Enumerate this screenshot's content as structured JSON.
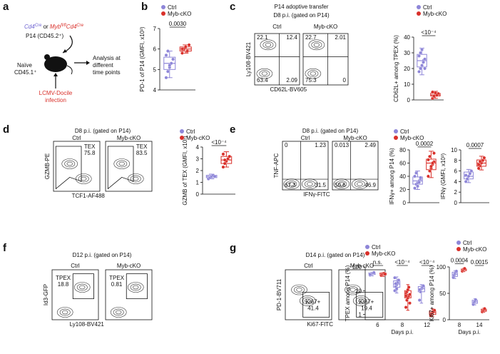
{
  "figure": {
    "a": {
      "letter": "a",
      "genotype": [
        {
          "text": "Cd4",
          "color": "#6a5fd0",
          "italic": true
        },
        {
          "text": "Cre",
          "sup": true,
          "color": "#6a5fd0",
          "italic": true
        },
        {
          "text": " or "
        },
        {
          "text": "Myb",
          "color": "#d9302a",
          "italic": true
        },
        {
          "text": "fl/fl",
          "sup": true,
          "color": "#d9302a",
          "italic": true
        },
        {
          "text": "Cd4",
          "color": "#d9302a",
          "italic": true
        },
        {
          "text": "Cre",
          "sup": true,
          "color": "#d9302a",
          "italic": true
        }
      ],
      "p14": "P14 (CD45.2⁺)",
      "host": [
        "Naïve",
        "CD45.1⁺"
      ],
      "analysis": [
        "Analysis at",
        "different",
        "time points"
      ],
      "infection": [
        "LCMV-Docile",
        "infection"
      ]
    },
    "b": {
      "letter": "b"
    },
    "c": {
      "letter": "c",
      "title": "P14 adoptive transfer",
      "subtitle": "D8 p.i. (gated on P14)",
      "ylabel": "Ly108-BV421",
      "xlabel": "CD62L-BV605",
      "plots": [
        {
          "name": "Ctrl",
          "quadrants": [
            22.1,
            12.4,
            63.4,
            2.09
          ]
        },
        {
          "name": "Myb-cKO",
          "quadrants": [
            22.7,
            2.01,
            75.3,
            0
          ]
        }
      ]
    },
    "d": {
      "letter": "d",
      "subtitle": "D8 p.i. (gated on P14)",
      "ylabel": "GZMB-PE",
      "xlabel": "TCF1-AF488",
      "plots": [
        {
          "name": "Ctrl",
          "gate": "TEX",
          "gate_value": 75.8
        },
        {
          "name": "Myb-cKO",
          "gate": "TEX",
          "gate_value": 83.5
        }
      ]
    },
    "e": {
      "letter": "e",
      "subtitle": "D8 p.i. (gated on P14)",
      "ylabel": "TNF-APC",
      "xlabel": "IFNγ-FITC",
      "plots": [
        {
          "name": "Ctrl",
          "quadrants": [
            0,
            1.23,
            67.3,
            31.5
          ]
        },
        {
          "name": "Myb-cKO",
          "quadrants": [
            0.013,
            2.49,
            50.6,
            46.9
          ]
        }
      ]
    },
    "f": {
      "letter": "f",
      "subtitle": "D12 p.i. (gated on P14)",
      "ylabel": "Id3-GFP",
      "xlabel": "Ly108-BV421",
      "plots": [
        {
          "name": "Ctrl",
          "gate": "TPEX",
          "gate_value": 18.8
        },
        {
          "name": "Myb-cKO",
          "gate": "TPEX",
          "gate_value": 0.81
        }
      ]
    },
    "g": {
      "letter": "g",
      "subtitle": "D14 p.i. (gated on P14)",
      "ylabel": "PD-1-BV711",
      "xlabel": "Ki67-FITC",
      "plots": [
        {
          "name": "Ctrl",
          "gate": "Ki67+",
          "gate_value": 41.4
        },
        {
          "name": "Myb-cKO",
          "gate": "Ki67+",
          "gate_value": 19.4
        }
      ]
    }
  },
  "chart_data": [
    {
      "type": "box",
      "ylabel": "PD-1 of P14 (GMFI, x10³)",
      "ylim": [
        4,
        7
      ],
      "yticks": [
        4,
        5,
        6,
        7
      ],
      "legend": true,
      "pvalues": [
        "0.0030"
      ],
      "series": [
        {
          "name": "Ctrl",
          "color": "#8e86d8",
          "boxes": [
            {
              "min": 4.6,
              "q1": 5.0,
              "median": 5.3,
              "q3": 5.6,
              "max": 5.9,
              "points": [
                4.6,
                4.9,
                5.1,
                5.3,
                5.5,
                5.7,
                5.9,
                5.2
              ]
            }
          ]
        },
        {
          "name": "Myb-cKO",
          "color": "#d9302a",
          "boxes": [
            {
              "min": 5.8,
              "q1": 5.9,
              "median": 6.0,
              "q3": 6.1,
              "max": 6.2,
              "points": [
                5.8,
                6.0,
                6.1,
                5.9,
                6.2,
                6.0
              ]
            }
          ]
        }
      ]
    },
    {
      "type": "box",
      "ylabel": "CD62L+ among TPEX (%)",
      "ylim": [
        0,
        40
      ],
      "yticks": [
        0,
        10,
        20,
        30,
        40
      ],
      "legend": true,
      "pvalues": [
        "<10⁻⁴"
      ],
      "series": [
        {
          "name": "Ctrl",
          "color": "#8e86d8",
          "boxes": [
            {
              "min": 16,
              "q1": 21,
              "median": 25,
              "q3": 29,
              "max": 33,
              "points": [
                18,
                20,
                22,
                25,
                26,
                28,
                30,
                32,
                24,
                20
              ]
            }
          ]
        },
        {
          "name": "Myb-cKO",
          "color": "#d9302a",
          "boxes": [
            {
              "min": 1,
              "q1": 2.5,
              "median": 3.2,
              "q3": 4.2,
              "max": 5.5,
              "points": [
                1,
                2,
                3,
                3.5,
                4,
                5,
                2.5,
                4.5,
                3
              ]
            }
          ]
        }
      ]
    },
    {
      "type": "box",
      "ylabel": "GZMB of TEX (GMFI, x10³)",
      "ylim": [
        0,
        4
      ],
      "yticks": [
        0,
        1,
        2,
        3,
        4
      ],
      "legend": true,
      "pvalues": [
        "<10⁻⁴"
      ],
      "series": [
        {
          "name": "Ctrl",
          "color": "#8e86d8",
          "boxes": [
            {
              "min": 1.3,
              "q1": 1.4,
              "median": 1.5,
              "q3": 1.6,
              "max": 1.7,
              "points": [
                1.3,
                1.4,
                1.5,
                1.6,
                1.5
              ]
            }
          ]
        },
        {
          "name": "Myb-cKO",
          "color": "#d9302a",
          "boxes": [
            {
              "min": 2.3,
              "q1": 2.6,
              "median": 2.9,
              "q3": 3.2,
              "max": 3.6,
              "points": [
                2.3,
                2.6,
                2.8,
                3.0,
                3.2,
                3.4,
                2.9
              ]
            }
          ]
        }
      ]
    },
    {
      "type": "box",
      "ylabel": "IFNγ+ among P14 (%)",
      "ylim": [
        0,
        80
      ],
      "yticks": [
        0,
        20,
        40,
        60,
        80
      ],
      "legend": true,
      "pvalues": [
        "0.0002"
      ],
      "series": [
        {
          "name": "Ctrl",
          "color": "#8e86d8",
          "boxes": [
            {
              "min": 20,
              "q1": 28,
              "median": 33,
              "q3": 39,
              "max": 48,
              "points": [
                22,
                28,
                30,
                33,
                36,
                40,
                45,
                25,
                31,
                38
              ]
            }
          ]
        },
        {
          "name": "Myb-cKO",
          "color": "#d9302a",
          "boxes": [
            {
              "min": 38,
              "q1": 50,
              "median": 60,
              "q3": 66,
              "max": 78,
              "points": [
                40,
                48,
                52,
                58,
                62,
                65,
                70,
                55,
                60,
                75
              ]
            }
          ]
        }
      ]
    },
    {
      "type": "box",
      "ylabel": "IFNγ (GMFI, x10³)",
      "ylim": [
        0,
        10
      ],
      "yticks": [
        0,
        2,
        4,
        6,
        8,
        10
      ],
      "legend": false,
      "pvalues": [
        "0.0007"
      ],
      "series": [
        {
          "name": "Ctrl",
          "color": "#8e86d8",
          "boxes": [
            {
              "min": 3.8,
              "q1": 4.5,
              "median": 5,
              "q3": 5.8,
              "max": 6.3,
              "points": [
                4,
                4.5,
                5,
                5.5,
                6,
                5.2
              ]
            }
          ]
        },
        {
          "name": "Myb-cKO",
          "color": "#d9302a",
          "boxes": [
            {
              "min": 6.2,
              "q1": 6.9,
              "median": 7.5,
              "q3": 8.1,
              "max": 8.8,
              "points": [
                6.5,
                7,
                7.5,
                8,
                8.5,
                7.2,
                7.8
              ]
            }
          ]
        }
      ]
    },
    {
      "type": "box",
      "ylabel": "TPEX among P14 (%)",
      "xlabel": "Days p.i.",
      "log": true,
      "categories": [
        6,
        8,
        12
      ],
      "ylim": [
        0.6,
        100
      ],
      "yticks": [
        1,
        10,
        100
      ],
      "legend": true,
      "pvalues": [
        "n.s.",
        "<10⁻⁴",
        "<10⁻⁴"
      ],
      "series": [
        {
          "name": "Ctrl",
          "color": "#8e86d8",
          "boxes": [
            {
              "min": 42,
              "q1": 48,
              "median": 52,
              "q3": 56,
              "max": 60,
              "points": [
                45,
                50,
                52,
                55,
                58,
                48
              ]
            },
            {
              "min": 8,
              "q1": 14,
              "median": 19,
              "q3": 26,
              "max": 38,
              "points": [
                10,
                15,
                18,
                22,
                28,
                35,
                20,
                12
              ]
            },
            {
              "min": 3,
              "q1": 9,
              "median": 12,
              "q3": 15,
              "max": 18,
              "points": [
                4,
                9,
                12,
                14,
                16,
                11
              ]
            }
          ]
        },
        {
          "name": "Myb-cKO",
          "color": "#d9302a",
          "boxes": [
            {
              "min": 40,
              "q1": 46,
              "median": 50,
              "q3": 55,
              "max": 58,
              "points": [
                44,
                48,
                52,
                54,
                50
              ]
            },
            {
              "min": 1.5,
              "q1": 5,
              "median": 7,
              "q3": 10,
              "max": 18,
              "points": [
                2,
                4,
                5,
                6,
                7,
                8,
                9,
                11,
                14,
                3,
                6
              ]
            },
            {
              "min": 0.8,
              "q1": 1,
              "median": 1.2,
              "q3": 1.4,
              "max": 1.7,
              "points": [
                0.9,
                1.1,
                1.2,
                1.3,
                1.5
              ]
            }
          ]
        }
      ]
    },
    {
      "type": "box",
      "ylabel": "Ki67+ among P14 (%)",
      "xlabel": "Days p.i.",
      "categories": [
        8,
        14
      ],
      "ylim": [
        0,
        100
      ],
      "yticks": [
        0,
        50,
        100
      ],
      "legend": true,
      "pvalues": [
        "0.0004",
        "0.0015"
      ],
      "series": [
        {
          "name": "Ctrl",
          "color": "#8e86d8",
          "boxes": [
            {
              "min": 78,
              "q1": 82,
              "median": 86,
              "q3": 90,
              "max": 93,
              "points": [
                80,
                84,
                87,
                90,
                92
              ]
            },
            {
              "min": 28,
              "q1": 31,
              "median": 34,
              "q3": 37,
              "max": 40,
              "points": [
                29,
                33,
                35,
                38
              ]
            }
          ]
        },
        {
          "name": "Myb-cKO",
          "color": "#d9302a",
          "boxes": [
            {
              "min": 91,
              "q1": 93,
              "median": 95,
              "q3": 96,
              "max": 98,
              "points": [
                92,
                94,
                96,
                97
              ]
            },
            {
              "min": 14,
              "q1": 16,
              "median": 18,
              "q3": 20,
              "max": 22,
              "points": [
                15,
                17,
                19,
                21
              ]
            }
          ]
        }
      ]
    }
  ]
}
